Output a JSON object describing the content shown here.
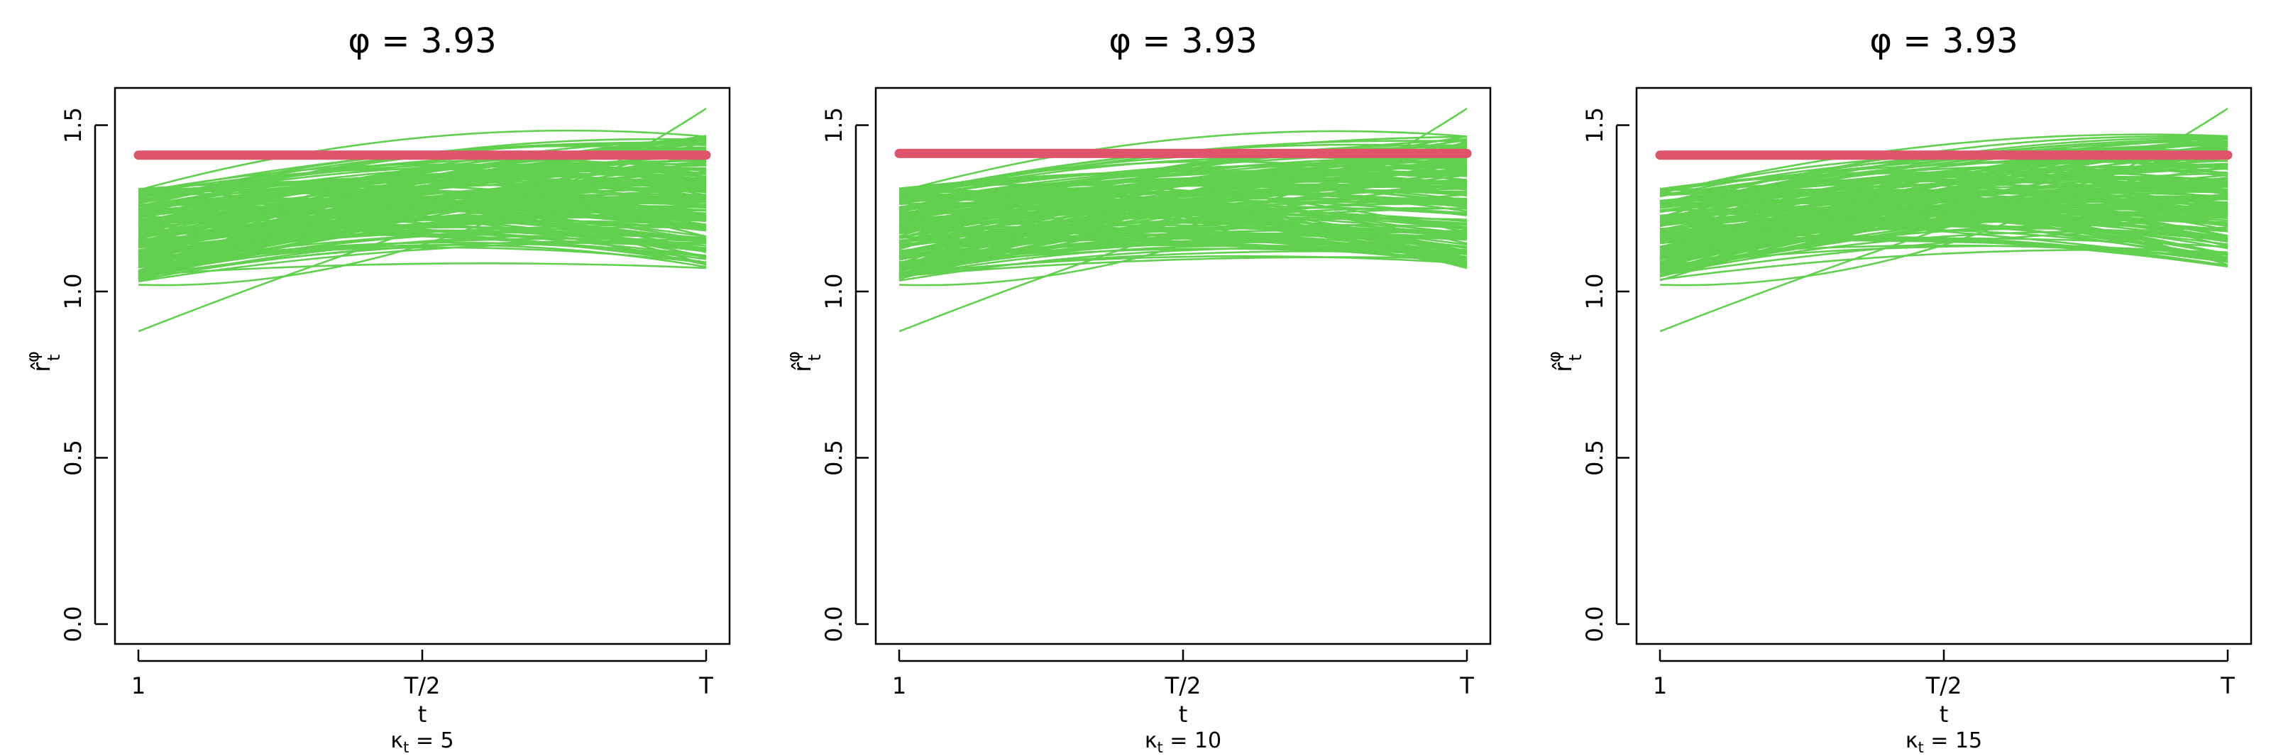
{
  "chart_data": [
    {
      "type": "line",
      "title": "φ = 3.93",
      "xlabel": "t",
      "ylabel": {
        "main": "r̂",
        "superscript": "φ",
        "subscript": "t"
      },
      "caption": {
        "symbol": "κ",
        "subscript": "t",
        "text": " = 5"
      },
      "x_ticks": [
        "1",
        "T/2",
        "T"
      ],
      "y_ticks": [
        "0.0",
        "0.5",
        "1.0",
        "1.5"
      ],
      "ylim": [
        0,
        1.6
      ],
      "reference_line": {
        "value": 1.41,
        "color": "#DF536B"
      },
      "series_color": "#61D04F",
      "seed": 11
    },
    {
      "type": "line",
      "title": "φ = 3.93",
      "xlabel": "t",
      "ylabel": {
        "main": "r̂",
        "superscript": "φ",
        "subscript": "t"
      },
      "caption": {
        "symbol": "κ",
        "subscript": "t",
        "text": " = 10"
      },
      "x_ticks": [
        "1",
        "T/2",
        "T"
      ],
      "y_ticks": [
        "0.0",
        "0.5",
        "1.0",
        "1.5"
      ],
      "ylim": [
        0,
        1.6
      ],
      "reference_line": {
        "value": 1.415,
        "color": "#DF536B"
      },
      "series_color": "#61D04F",
      "seed": 23
    },
    {
      "type": "line",
      "title": "φ = 3.93",
      "xlabel": "t",
      "ylabel": {
        "main": "r̂",
        "superscript": "φ",
        "subscript": "t"
      },
      "caption": {
        "symbol": "κ",
        "subscript": "t",
        "text": " = 15"
      },
      "x_ticks": [
        "1",
        "T/2",
        "T"
      ],
      "y_ticks": [
        "0.0",
        "0.5",
        "1.0",
        "1.5"
      ],
      "ylim": [
        0,
        1.6
      ],
      "reference_line": {
        "value": 1.41,
        "color": "#DF536B"
      },
      "series_color": "#61D04F",
      "seed": 37
    }
  ]
}
